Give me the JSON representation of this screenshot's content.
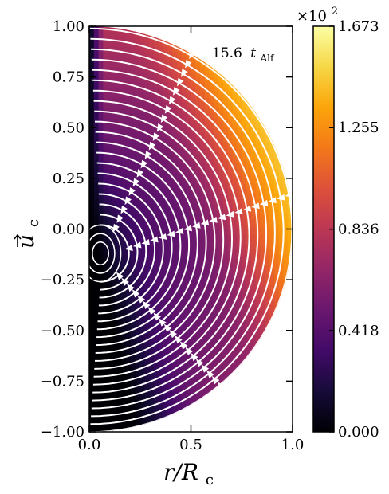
{
  "chart_data": {
    "type": "heatmap",
    "annotation": {
      "value": "15.6",
      "symbol": "t",
      "subscript": "Alf"
    },
    "xlabel": {
      "main": "r/R",
      "subscript": "c"
    },
    "ylabel": {
      "main": "u",
      "subscript": "c"
    },
    "xlim": [
      0.0,
      1.0
    ],
    "ylim": [
      -1.0,
      1.0
    ],
    "xticks": [
      0.0,
      0.5,
      1.0
    ],
    "xtick_labels": [
      "0.0",
      "0.5",
      "1.0"
    ],
    "yticks": [
      1.0,
      0.75,
      0.5,
      0.25,
      0.0,
      -0.25,
      -0.5,
      -0.75,
      -1.0
    ],
    "ytick_labels": [
      "1.00",
      "0.75",
      "0.50",
      "0.25",
      "0.00",
      "−0.25",
      "−0.50",
      "−0.75",
      "−1.00"
    ],
    "colorbar": {
      "colormap": "inferno",
      "min": 0.0,
      "max": 1.673,
      "ticks": [
        0.0,
        0.418,
        0.836,
        1.255,
        1.673
      ],
      "tick_labels": [
        "0.000",
        "0.418",
        "0.836",
        "1.255",
        "1.673"
      ],
      "multiplier": {
        "base": "×10",
        "exponent": "2"
      }
    },
    "domain": "half-disk of unit radius, r ≥ 0",
    "streamlines": "white, circulating vortex centered near (0.05, -0.12)",
    "colors": {
      "streamline": "#ffffff",
      "background": "#ffffff"
    }
  }
}
